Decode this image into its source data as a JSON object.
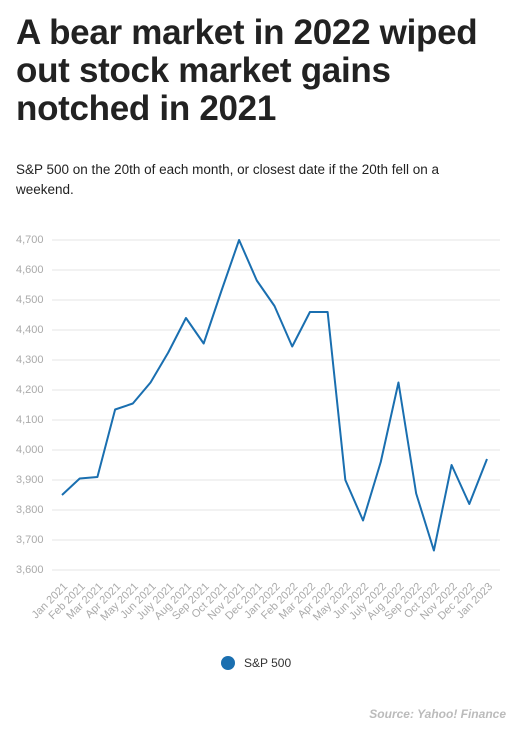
{
  "chart_data": {
    "type": "line",
    "title": "A bear market in 2022 wiped out stock market gains notched in 2021",
    "subtitle": "S&P 500 on the 20th of each month, or closest date if the 20th fell on a weekend.",
    "categories": [
      "Jan 2021",
      "Feb 2021",
      "Mar 2021",
      "Apr 2021",
      "May 2021",
      "Jun 2021",
      "July 2021",
      "Aug 2021",
      "Sep 2021",
      "Oct 2021",
      "Nov 2021",
      "Dec 2021",
      "Jan 2022",
      "Feb 2022",
      "Mar 2022",
      "Apr 2022",
      "May 2022",
      "Jun 2022",
      "July 2022",
      "Aug 2022",
      "Sep 2022",
      "Oct 2022",
      "Nov 2022",
      "Dec 2022",
      "Jan 2023"
    ],
    "series": [
      {
        "name": "S&P 500",
        "color": "#1a6fb0",
        "values": [
          3850,
          3905,
          3910,
          4135,
          4155,
          4225,
          4325,
          4440,
          4355,
          4530,
          4700,
          4565,
          4480,
          4345,
          4460,
          4460,
          3900,
          3765,
          3960,
          4225,
          3855,
          3665,
          3950,
          3820,
          3970
        ]
      }
    ],
    "ylim": [
      3600,
      4700
    ],
    "yticks": [
      {
        "value": 3600,
        "label": "3,600"
      },
      {
        "value": 3700,
        "label": "3,700"
      },
      {
        "value": 3800,
        "label": "3,800"
      },
      {
        "value": 3900,
        "label": "3,900"
      },
      {
        "value": 4000,
        "label": "4,000"
      },
      {
        "value": 4100,
        "label": "4,100"
      },
      {
        "value": 4200,
        "label": "4,200"
      },
      {
        "value": 4300,
        "label": "4,300"
      },
      {
        "value": 4400,
        "label": "4,400"
      },
      {
        "value": 4500,
        "label": "4,500"
      },
      {
        "value": 4600,
        "label": "4,600"
      },
      {
        "value": 4700,
        "label": "4,700"
      }
    ],
    "grid": true,
    "source": "Source: Yahoo! Finance"
  }
}
